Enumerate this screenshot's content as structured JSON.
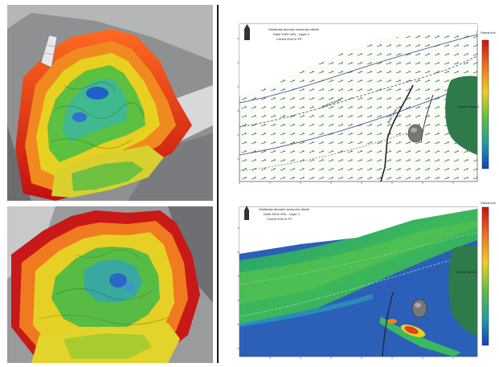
{
  "top_map": {
    "title_lines": [
      "Distribuția direcției vectorului viteză",
      "Debit 1020 m³/s - Layer 1",
      "Curent 20m în P9"
    ],
    "island_label": "Insula Ostrovu",
    "inset_label": "Bala Canal",
    "colorbar_label": "Viteză m/s"
  },
  "bottom_map": {
    "title_lines": [
      "Distribuția direcției vectorului viteză",
      "Debit 2014 m³/s - Layer 1",
      "Curent 20m în P7"
    ],
    "island_label": "Insula Ostrovu",
    "colorbar_label": "Viteză m/s"
  },
  "colors": {
    "colorbar": [
      "#d01010",
      "#f07020",
      "#f0d020",
      "#60c040",
      "#20a0a0",
      "#1040c0"
    ],
    "water_blue": "#2c5fb8",
    "water_green": "#35b060",
    "land_green": "#2e7a4a"
  }
}
